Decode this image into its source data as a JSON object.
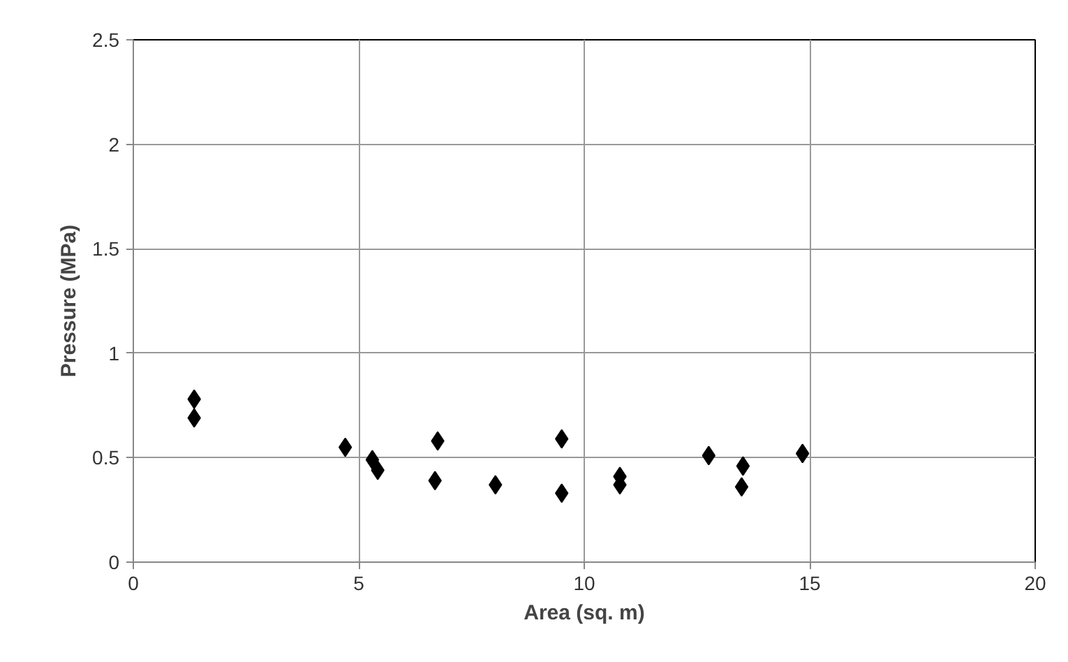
{
  "chart_data": {
    "type": "scatter",
    "xlabel": "Area (sq. m)",
    "ylabel": "Pressure (MPa)",
    "x": [
      1.35,
      1.35,
      4.7,
      5.3,
      5.42,
      6.75,
      6.69,
      8.03,
      9.5,
      9.5,
      10.79,
      10.79,
      12.76,
      13.52,
      13.49,
      14.84
    ],
    "series": [
      {
        "color": "#000000",
        "values": [
          0.78,
          0.69,
          0.55,
          0.49,
          0.44,
          0.58,
          0.39,
          0.37,
          0.59,
          0.33,
          0.41,
          0.37,
          0.51,
          0.46,
          0.36,
          0.52
        ]
      }
    ],
    "xlim": [
      0,
      20
    ],
    "xticks": [
      0,
      5,
      10,
      15,
      20
    ],
    "ylim": [
      0,
      2.5
    ],
    "yticks": [
      0,
      0.5,
      1,
      1.5,
      2,
      2.5
    ],
    "grid": true,
    "marker": "diamond"
  }
}
